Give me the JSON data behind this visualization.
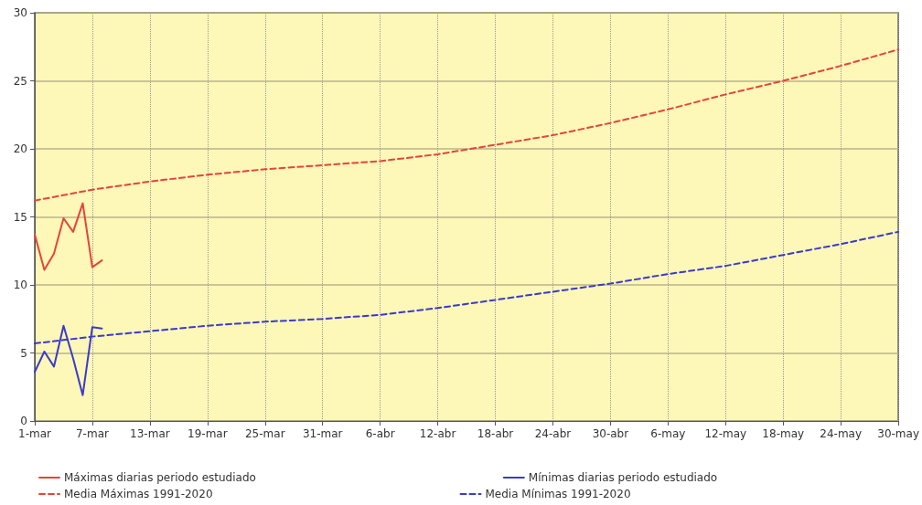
{
  "chart_data": {
    "type": "line",
    "legend": "bottom",
    "grid": true,
    "marker": "none",
    "xlim": [
      "--03-01",
      "--05-30"
    ],
    "xticks": [
      {
        "value": "--03-01",
        "label": "1-mar"
      },
      {
        "value": "--03-07",
        "label": "7-mar"
      },
      {
        "value": "--03-13",
        "label": "13-mar"
      },
      {
        "value": "--03-19",
        "label": "19-mar"
      },
      {
        "value": "--03-25",
        "label": "25-mar"
      },
      {
        "value": "--03-31",
        "label": "31-mar"
      },
      {
        "value": "--04-06",
        "label": "6-abr"
      },
      {
        "value": "--04-12",
        "label": "12-abr"
      },
      {
        "value": "--04-18",
        "label": "18-abr"
      },
      {
        "value": "--04-24",
        "label": "24-abr"
      },
      {
        "value": "--04-30",
        "label": "30-abr"
      },
      {
        "value": "--05-06",
        "label": "6-may"
      },
      {
        "value": "--05-12",
        "label": "12-may"
      },
      {
        "value": "--05-18",
        "label": "18-may"
      },
      {
        "value": "--05-24",
        "label": "24-may"
      },
      {
        "value": "--05-30",
        "label": "30-may"
      }
    ],
    "ylim": [
      0,
      30
    ],
    "yticks": [
      0,
      5,
      10,
      15,
      20,
      25,
      30
    ],
    "series": [
      {
        "name": "Máximas diarias periodo estudiado",
        "color": "#e8433a",
        "line_style": "solid",
        "x": [
          "--03-01",
          "--03-02",
          "--03-03",
          "--03-04",
          "--03-05",
          "--03-06",
          "--03-07",
          "--03-08"
        ],
        "values": [
          13.7,
          11.1,
          12.3,
          14.9,
          13.9,
          16.0,
          11.3,
          11.8
        ]
      },
      {
        "name": "Mínimas diarias periodo estudiado",
        "color": "#3a3acc",
        "line_style": "solid",
        "x": [
          "--03-01",
          "--03-02",
          "--03-03",
          "--03-04",
          "--03-05",
          "--03-06",
          "--03-07",
          "--03-08"
        ],
        "values": [
          3.6,
          5.1,
          4.0,
          7.0,
          4.6,
          1.9,
          6.9,
          6.8
        ]
      },
      {
        "name": "Media Máximas 1991-2020",
        "color": "#e8433a",
        "line_style": "dashed",
        "x": [
          "--03-01",
          "--03-07",
          "--03-13",
          "--03-19",
          "--03-25",
          "--03-31",
          "--04-06",
          "--04-12",
          "--04-18",
          "--04-24",
          "--04-30",
          "--05-06",
          "--05-12",
          "--05-18",
          "--05-24",
          "--05-30"
        ],
        "values": [
          16.2,
          17.0,
          17.6,
          18.1,
          18.5,
          18.8,
          19.1,
          19.6,
          20.3,
          21.0,
          21.9,
          22.9,
          24.0,
          25.0,
          26.1,
          27.3
        ]
      },
      {
        "name": "Media Mínimas 1991-2020",
        "color": "#3a3acc",
        "line_style": "dashed",
        "x": [
          "--03-01",
          "--03-07",
          "--03-13",
          "--03-19",
          "--03-25",
          "--03-31",
          "--04-06",
          "--04-12",
          "--04-18",
          "--04-24",
          "--04-30",
          "--05-06",
          "--05-12",
          "--05-18",
          "--05-24",
          "--05-30"
        ],
        "values": [
          5.7,
          6.2,
          6.6,
          7.0,
          7.3,
          7.5,
          7.8,
          8.3,
          8.9,
          9.5,
          10.1,
          10.8,
          11.4,
          12.2,
          13.0,
          13.9
        ]
      }
    ]
  }
}
